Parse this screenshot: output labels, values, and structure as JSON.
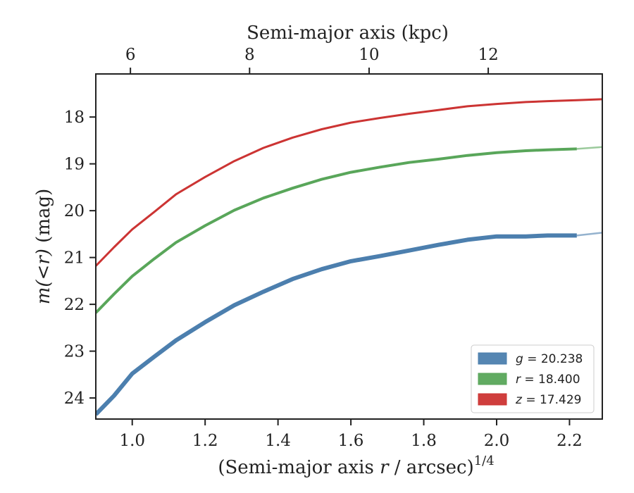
{
  "chart_data": {
    "type": "line",
    "x_axis": {
      "label_prefix": "(Semi-major axis ",
      "label_var": "r",
      "label_suffix": " / arcsec)",
      "label_exponent": "1/4",
      "range": [
        0.9,
        2.29
      ],
      "ticks": [
        1.0,
        1.2,
        1.4,
        1.6,
        1.8,
        2.0,
        2.2
      ],
      "tick_labels": [
        "1.0",
        "1.2",
        "1.4",
        "1.6",
        "1.8",
        "2.0",
        "2.2"
      ]
    },
    "y_axis": {
      "label_math": "m(<r)",
      "label_unit": " (mag)",
      "range": [
        24.45,
        17.08
      ],
      "inverted": true,
      "ticks": [
        18,
        19,
        20,
        21,
        22,
        23,
        24
      ],
      "tick_labels": [
        "18",
        "19",
        "20",
        "21",
        "22",
        "23",
        "24"
      ]
    },
    "top_axis": {
      "label": "Semi-major axis (kpc)",
      "tick_labels": [
        "6",
        "8",
        "10",
        "12"
      ],
      "tick_x_positions": [
        0.995,
        1.322,
        1.65,
        1.977
      ]
    },
    "legend": {
      "placement": "lower right",
      "entries": [
        {
          "var": "g",
          "value": "20.238",
          "color": "#4c7fae"
        },
        {
          "var": "r",
          "value": "18.400",
          "color": "#59a65a"
        },
        {
          "var": "z",
          "value": "17.429",
          "color": "#cc3433"
        }
      ]
    },
    "grid": false,
    "series": [
      {
        "name": "g",
        "color": "#4c7fae",
        "x": [
          0.9,
          0.95,
          1.0,
          1.06,
          1.12,
          1.2,
          1.28,
          1.36,
          1.44,
          1.52,
          1.6,
          1.68,
          1.76,
          1.84,
          1.92,
          2.0,
          2.08,
          2.14,
          2.22
        ],
        "y": [
          24.35,
          23.95,
          23.48,
          23.12,
          22.77,
          22.38,
          22.02,
          21.73,
          21.46,
          21.25,
          21.08,
          20.97,
          20.85,
          20.73,
          20.62,
          20.55,
          20.55,
          20.53,
          20.53
        ],
        "extension": {
          "x": [
            2.22,
            2.29
          ],
          "y": [
            20.53,
            20.47
          ]
        }
      },
      {
        "name": "r",
        "color": "#59a65a",
        "x": [
          0.9,
          0.95,
          1.0,
          1.06,
          1.12,
          1.2,
          1.28,
          1.36,
          1.44,
          1.52,
          1.6,
          1.68,
          1.76,
          1.84,
          1.92,
          2.0,
          2.08,
          2.14,
          2.22
        ],
        "y": [
          22.18,
          21.78,
          21.4,
          21.03,
          20.68,
          20.32,
          19.99,
          19.73,
          19.52,
          19.33,
          19.18,
          19.07,
          18.97,
          18.9,
          18.82,
          18.76,
          18.72,
          18.7,
          18.68
        ],
        "extension": {
          "x": [
            2.22,
            2.29
          ],
          "y": [
            18.68,
            18.64
          ]
        }
      },
      {
        "name": "z",
        "color": "#cc3433",
        "x": [
          0.9,
          0.95,
          1.0,
          1.06,
          1.12,
          1.2,
          1.28,
          1.36,
          1.44,
          1.52,
          1.6,
          1.68,
          1.76,
          1.84,
          1.92,
          2.0,
          2.08,
          2.14,
          2.22,
          2.29
        ],
        "y": [
          21.18,
          20.78,
          20.4,
          20.03,
          19.65,
          19.28,
          18.94,
          18.66,
          18.44,
          18.26,
          18.12,
          18.02,
          17.93,
          17.85,
          17.77,
          17.72,
          17.68,
          17.66,
          17.64,
          17.62
        ]
      }
    ]
  }
}
